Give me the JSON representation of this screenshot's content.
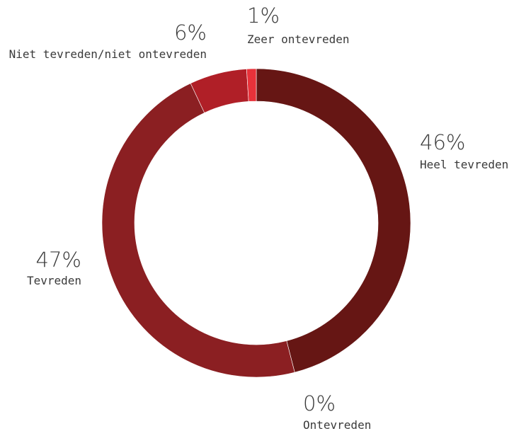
{
  "chart_data": {
    "type": "pie",
    "style": "donut",
    "title": "",
    "slices": [
      {
        "label": "Heel tevreden",
        "value": 46,
        "value_label": "46%",
        "color": "#661614"
      },
      {
        "label": "Ontevreden",
        "value": 0,
        "value_label": "0%",
        "color": "#8a1b1d"
      },
      {
        "label": "Tevreden",
        "value": 47,
        "value_label": "47%",
        "color": "#8b1f22"
      },
      {
        "label": "Niet tevreden/niet ontevreden",
        "value": 6,
        "value_label": "6%",
        "color": "#b01f27"
      },
      {
        "label": "Zeer ontevreden",
        "value": 1,
        "value_label": "1%",
        "color": "#e8323a"
      }
    ],
    "legend": "none",
    "text_color": "#3a3a3a"
  }
}
